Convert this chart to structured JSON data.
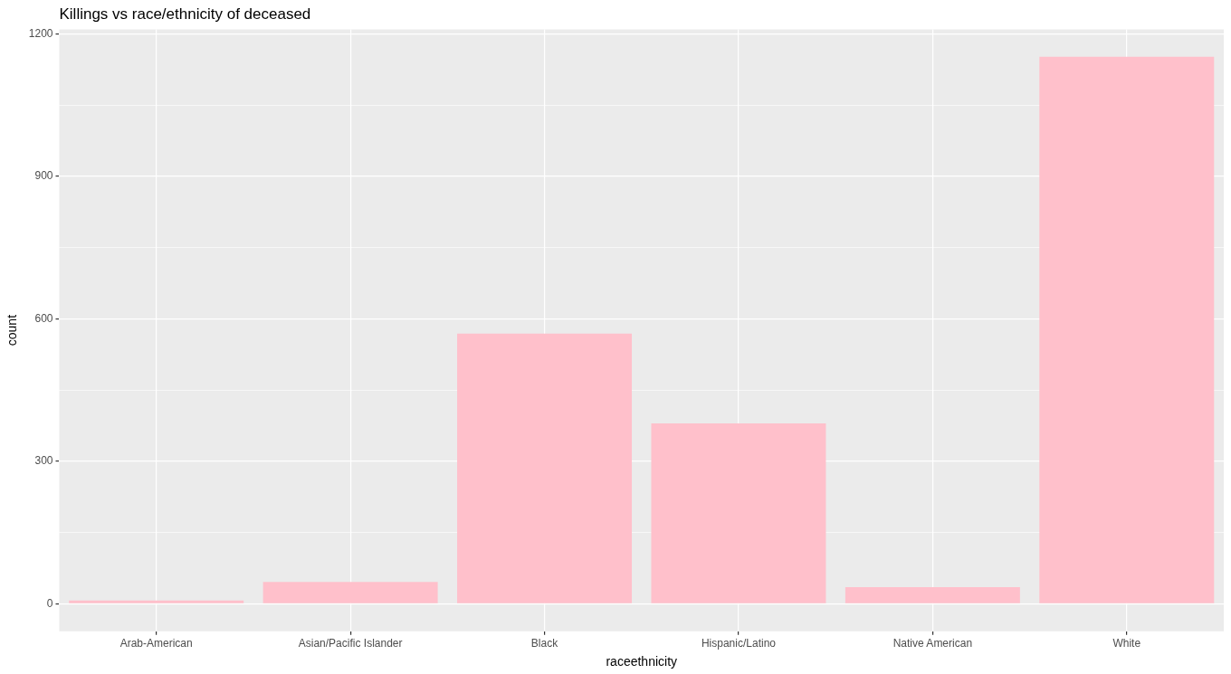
{
  "chart_data": {
    "type": "bar",
    "title": "Killings vs race/ethnicity of deceased",
    "xlabel": "raceethnicity",
    "ylabel": "count",
    "categories": [
      "Arab-American",
      "Asian/Pacific Islander",
      "Black",
      "Hispanic/Latino",
      "Native American",
      "White"
    ],
    "values": [
      7,
      46,
      569,
      380,
      35,
      1152
    ],
    "color": "#ffc0cb",
    "ylim": [
      -58,
      1210
    ],
    "yticks": [
      0,
      {
        "value": 150,
        "label": null
      },
      300,
      {
        "value": 450,
        "label": null
      },
      600,
      {
        "value": 750,
        "label": null
      },
      900,
      {
        "value": 1050,
        "label": null
      },
      1200
    ],
    "grid": true
  }
}
